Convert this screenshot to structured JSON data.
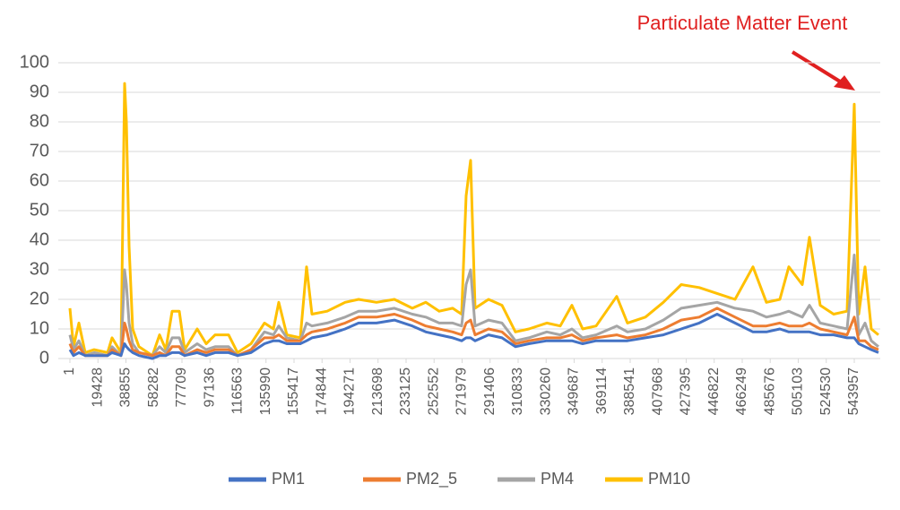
{
  "chart_data": {
    "type": "line",
    "annotation": "Particulate Matter Event",
    "x": [
      1,
      2487,
      6217,
      10568,
      16785,
      26110,
      29218,
      35435,
      37921,
      39165,
      41030,
      43516,
      47868,
      57193,
      62166,
      66518,
      70869,
      75843,
      79572,
      88276,
      94512,
      100709,
      110034,
      116250,
      125575,
      134900,
      141137,
      144847,
      150442,
      159767,
      164118,
      167848,
      178416,
      190849,
      200215,
      212608,
      225041,
      237474,
      246799,
      256124,
      265449,
      271665,
      274773,
      277882,
      280990,
      290315,
      299640,
      308965,
      318290,
      330723,
      340048,
      348130,
      355590,
      364914,
      379213,
      386673,
      399106,
      411539,
      423972,
      436405,
      448838,
      461271,
      473704,
      483029,
      492355,
      498571,
      507896,
      512870,
      520330,
      529655,
      538980,
      543953,
      547062,
      551413,
      555765,
      560738
    ],
    "series": [
      {
        "name": "PM1",
        "color": "#4472c4",
        "values": [
          3,
          1,
          2,
          1,
          1,
          1,
          2,
          1,
          5,
          4,
          3,
          2,
          1,
          0,
          1,
          1,
          2,
          2,
          1,
          2,
          1,
          2,
          2,
          1,
          2,
          5,
          6,
          6,
          5,
          5,
          6,
          7,
          8,
          10,
          12,
          12,
          13,
          11,
          9,
          8,
          7,
          6,
          7,
          7,
          6,
          8,
          7,
          4,
          5,
          6,
          6,
          6,
          5,
          6,
          6,
          6,
          7,
          8,
          10,
          12,
          15,
          12,
          9,
          9,
          10,
          9,
          9,
          9,
          8,
          8,
          7,
          7,
          5,
          4,
          3,
          2
        ]
      },
      {
        "name": "PM2_5",
        "color": "#ed7d31",
        "values": [
          5,
          2,
          4,
          1,
          1,
          1,
          3,
          1,
          12,
          10,
          6,
          3,
          2,
          1,
          2,
          1,
          4,
          4,
          1,
          3,
          2,
          3,
          3,
          1,
          3,
          7,
          7,
          8,
          6,
          6,
          8,
          9,
          10,
          12,
          14,
          14,
          15,
          13,
          11,
          10,
          9,
          8,
          12,
          13,
          8,
          10,
          9,
          5,
          6,
          7,
          7,
          8,
          6,
          7,
          8,
          7,
          8,
          10,
          13,
          14,
          17,
          14,
          11,
          11,
          12,
          11,
          11,
          12,
          10,
          9,
          8,
          14,
          6,
          6,
          4,
          3
        ]
      },
      {
        "name": "PM4",
        "color": "#a5a5a5",
        "values": [
          8,
          3,
          6,
          1,
          2,
          1,
          4,
          1,
          30,
          25,
          12,
          5,
          2,
          1,
          4,
          2,
          7,
          7,
          2,
          5,
          3,
          4,
          4,
          1,
          3,
          9,
          8,
          11,
          7,
          6,
          12,
          11,
          12,
          14,
          16,
          16,
          17,
          15,
          14,
          12,
          12,
          11,
          25,
          30,
          11,
          13,
          12,
          6,
          7,
          9,
          8,
          10,
          7,
          8,
          11,
          9,
          10,
          13,
          17,
          18,
          19,
          17,
          16,
          14,
          15,
          16,
          14,
          18,
          12,
          11,
          10,
          35,
          8,
          12,
          6,
          4
        ]
      },
      {
        "name": "PM10",
        "color": "#ffc000",
        "values": [
          17,
          4,
          12,
          2,
          3,
          2,
          7,
          2,
          93,
          80,
          38,
          10,
          4,
          1,
          8,
          3,
          16,
          16,
          3,
          10,
          5,
          8,
          8,
          2,
          5,
          12,
          10,
          19,
          8,
          7,
          31,
          15,
          16,
          19,
          20,
          19,
          20,
          17,
          19,
          16,
          17,
          15,
          55,
          67,
          17,
          20,
          18,
          9,
          10,
          12,
          11,
          18,
          10,
          11,
          21,
          12,
          14,
          19,
          25,
          24,
          22,
          20,
          31,
          19,
          20,
          31,
          25,
          41,
          18,
          15,
          16,
          86,
          15,
          31,
          10,
          8
        ]
      }
    ],
    "xlim": [
      1,
      562000
    ],
    "xticks": [
      1,
      19428,
      38855,
      58282,
      77709,
      97136,
      116563,
      135990,
      155417,
      174844,
      194271,
      213698,
      233125,
      252552,
      271979,
      291406,
      310833,
      330260,
      349687,
      369114,
      388541,
      407968,
      427395,
      446822,
      466249,
      485676,
      505103,
      524530,
      543957
    ],
    "ylim": [
      0,
      100
    ],
    "yticks": [
      0,
      10,
      20,
      30,
      40,
      50,
      60,
      70,
      80,
      90,
      100
    ],
    "grid": true,
    "legend": "bottom"
  }
}
